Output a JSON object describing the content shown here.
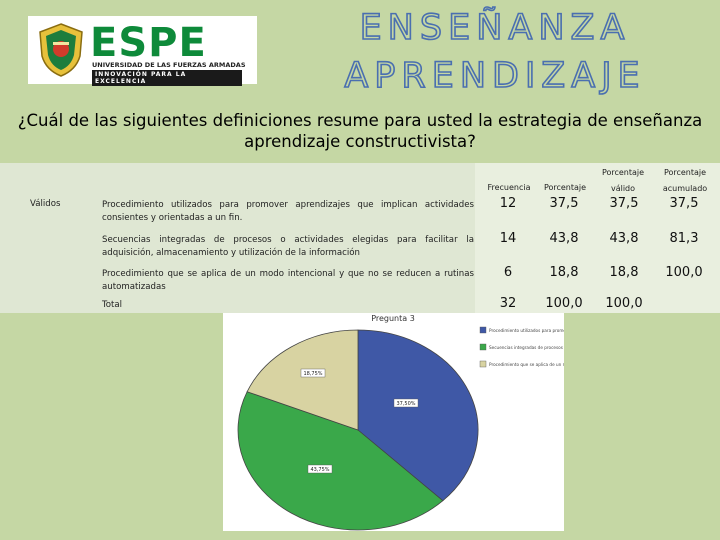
{
  "logo": {
    "name": "ESPE",
    "university": "UNIVERSIDAD DE LAS FUERZAS ARMADAS",
    "motto": "INNOVACIÓN PARA LA EXCELENCIA"
  },
  "title_line1": "ENSEÑANZA",
  "title_line2": "APRENDIZAJE",
  "question": "¿Cuál de las siguientes definiciones resume para usted la estrategia de enseñanza aprendizaje constructivista?",
  "table": {
    "validos_label": "Válidos",
    "headers": {
      "frecuencia": "Frecuencia",
      "porcentaje": "Porcentaje",
      "valido_l1": "Porcentaje",
      "valido_l2": "válido",
      "acum_l1": "Porcentaje",
      "acum_l2": "acumulado"
    },
    "rows": [
      {
        "label": "Procedimiento utilizados para promover aprendizajes que implican actividades consientes y orientadas a un fin.",
        "freq": "12",
        "pct": "37,5",
        "valid": "37,5",
        "cum": "37,5"
      },
      {
        "label": "Secuencias integradas de procesos o actividades elegidas para facilitar la adquisición, almacenamiento y utilización de la información",
        "freq": "14",
        "pct": "43,8",
        "valid": "43,8",
        "cum": "81,3"
      },
      {
        "label": "Procedimiento que se aplica de un modo intencional y que no se reducen a rutinas automatizadas",
        "freq": "6",
        "pct": "18,8",
        "valid": "18,8",
        "cum": "100,0"
      },
      {
        "label": "Total",
        "freq": "32",
        "pct": "100,0",
        "valid": "100,0",
        "cum": ""
      }
    ]
  },
  "chart_data": {
    "type": "pie",
    "title": "Pregunta 3",
    "slices": [
      {
        "label": "37,50%",
        "value": 37.5,
        "color": "#3f58a6"
      },
      {
        "label": "43,75%",
        "value": 43.75,
        "color": "#3aa84a"
      },
      {
        "label": "18,75%",
        "value": 18.75,
        "color": "#d8d3a2"
      }
    ],
    "legend": [
      {
        "text": "Procedimiento utilizados para promover aprendizajes que implican actividades consientes y orientadas a un fin",
        "color": "#3f58a6"
      },
      {
        "text": "Secuencias integradas de procesos o actividades elegidas para facilitar la adquisición",
        "color": "#3aa84a"
      },
      {
        "text": "Procedimiento que se aplica de un modo intencional y que no se reducen a rutinas automatizadas",
        "color": "#d8d3a2"
      }
    ],
    "legend_position": "top-right"
  }
}
